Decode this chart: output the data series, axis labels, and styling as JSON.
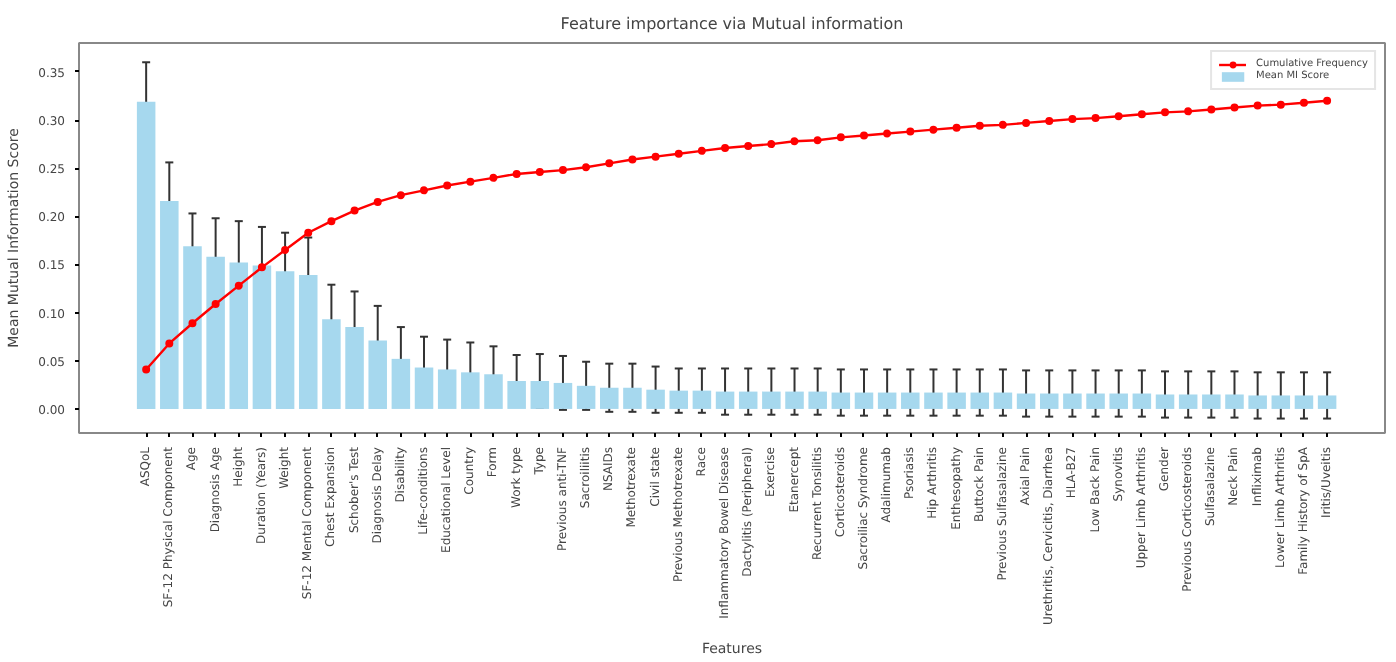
{
  "chart_data": {
    "type": "bar",
    "title": "Feature importance via Mutual information",
    "xlabel": "Features",
    "ylabel": "Mean Mutual Information Score",
    "categories": [
      "ASQoL",
      "SF-12 Physical Component",
      "Age",
      "Diagnosis Age",
      "Height",
      "Duration (Years)",
      "Weight",
      "SF-12 Mental Component",
      "Chest Expansion",
      "Schober's Test",
      "Diagnosis Delay",
      "Disability",
      "Life-conditions",
      "Educational Level",
      "Country",
      "Form",
      "Work type",
      "Type",
      "Previous anti-TNF",
      "Sacroiliitis",
      "NSAIDs",
      "Methotrexate",
      "Civil state",
      "Previous Methotrexate",
      "Race",
      "Inflammatory Bowel Disease",
      "Dactylitis (Peripheral)",
      "Exercise",
      "Etanercept",
      "Recurrent Tonsilitis",
      "Corticosteroids",
      "Sacroiliac Syndrome",
      "Adalimumab",
      "Psoriasis",
      "Hip Arthritis",
      "Enthesopathy",
      "Buttock Pain",
      "Previous Sulfasalazine",
      "Axial Pain",
      "Urethritis, Cervicitis, Diarrhea",
      "HLA-B27",
      "Low Back Pain",
      "Synovitis",
      "Upper Limb Arthritis",
      "Gender",
      "Previous Corticosteroids",
      "Sulfasalazine",
      "Neck Pain",
      "Infliximab",
      "Lower Limb Arthritis",
      "Family History of SpA",
      "Iritis/Uveitis"
    ],
    "series": [
      {
        "name": "Mean MI Score",
        "color": "#a6d8ee",
        "values": [
          0.319,
          0.216,
          0.169,
          0.158,
          0.152,
          0.149,
          0.143,
          0.139,
          0.093,
          0.085,
          0.071,
          0.052,
          0.043,
          0.041,
          0.038,
          0.036,
          0.029,
          0.029,
          0.027,
          0.024,
          0.022,
          0.022,
          0.02,
          0.019,
          0.019,
          0.018,
          0.018,
          0.018,
          0.018,
          0.018,
          0.017,
          0.017,
          0.017,
          0.017,
          0.017,
          0.017,
          0.017,
          0.017,
          0.016,
          0.016,
          0.016,
          0.016,
          0.016,
          0.016,
          0.015,
          0.015,
          0.015,
          0.015,
          0.014,
          0.014,
          0.014,
          0.014
        ],
        "errors": [
          0.041,
          0.04,
          0.034,
          0.04,
          0.043,
          0.04,
          0.04,
          0.039,
          0.036,
          0.037,
          0.036,
          0.033,
          0.032,
          0.031,
          0.031,
          0.029,
          0.027,
          0.028,
          0.028,
          0.025,
          0.025,
          0.025,
          0.024,
          0.023,
          0.023,
          0.024,
          0.024,
          0.024,
          0.024,
          0.024,
          0.024,
          0.024,
          0.024,
          0.024,
          0.024,
          0.024,
          0.024,
          0.024,
          0.024,
          0.024,
          0.024,
          0.024,
          0.024,
          0.024,
          0.024,
          0.024,
          0.024,
          0.024,
          0.024,
          0.024,
          0.024,
          0.024
        ]
      },
      {
        "name": "Cumulative Frequency",
        "type": "line",
        "color": "#ff0000",
        "marker": "circle",
        "line_style": "solid",
        "values": [
          0.041,
          0.068,
          0.089,
          0.109,
          0.128,
          0.147,
          0.165,
          0.183,
          0.195,
          0.206,
          0.215,
          0.222,
          0.227,
          0.232,
          0.236,
          0.24,
          0.244,
          0.246,
          0.248,
          0.251,
          0.255,
          0.259,
          0.262,
          0.265,
          0.268,
          0.271,
          0.273,
          0.275,
          0.278,
          0.279,
          0.282,
          0.284,
          0.286,
          0.288,
          0.29,
          0.292,
          0.294,
          0.295,
          0.297,
          0.299,
          0.301,
          0.302,
          0.304,
          0.306,
          0.308,
          0.309,
          0.311,
          0.313,
          0.315,
          0.316,
          0.318,
          0.32
        ]
      }
    ],
    "ylim": [
      -0.025,
      0.38
    ],
    "yticks": [
      {
        "value": 0,
        "label": "0.00"
      },
      {
        "value": 0.05,
        "label": "0.05"
      },
      {
        "value": 0.1,
        "label": "0.10"
      },
      {
        "value": 0.15,
        "label": "0.15"
      },
      {
        "value": 0.2,
        "label": "0.20"
      },
      {
        "value": 0.25,
        "label": "0.25"
      },
      {
        "value": 0.3,
        "label": "0.30"
      },
      {
        "value": 0.35,
        "label": "0.35"
      }
    ],
    "grid": false,
    "legend": "top right"
  }
}
